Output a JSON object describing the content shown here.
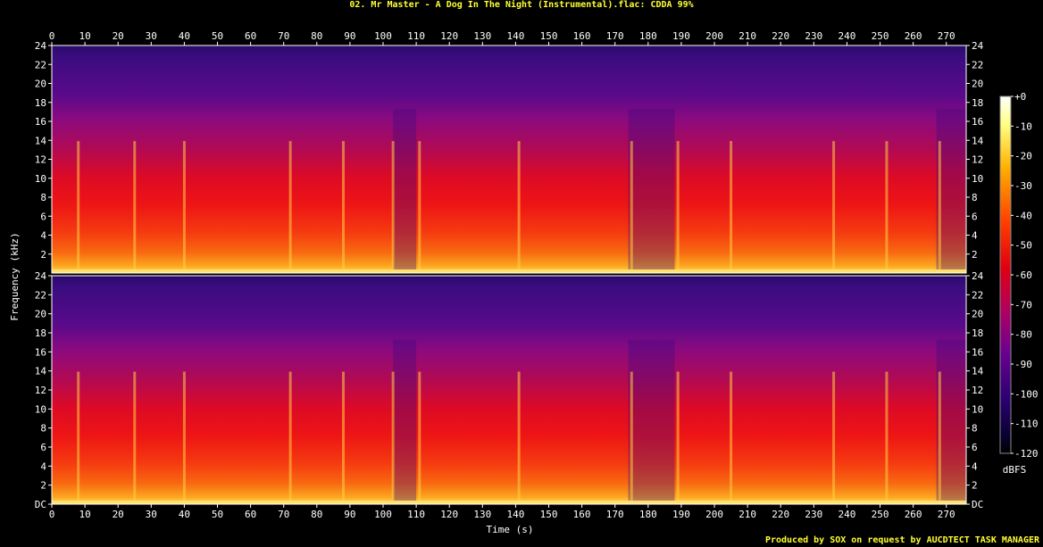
{
  "title": "02. Mr Master - A Dog In The Night (Instrumental).flac: CDDA 99%",
  "footer": "Produced by SOX on request by AUCDTECT TASK MANAGER",
  "chart_data": {
    "type": "heatmap",
    "title": "02. Mr Master - A Dog In The Night (Instrumental).flac: CDDA 99%",
    "xlabel": "Time (s)",
    "ylabel": "Frequency (kHz)",
    "x_ticks": [
      0,
      10,
      20,
      30,
      40,
      50,
      60,
      70,
      80,
      90,
      100,
      110,
      120,
      130,
      140,
      150,
      160,
      170,
      180,
      190,
      200,
      210,
      220,
      230,
      240,
      250,
      260,
      270
    ],
    "y_ticks_top": [
      "24",
      "22",
      "20",
      "18",
      "16",
      "14",
      "12",
      "10",
      "8",
      "6",
      "4",
      "2"
    ],
    "y_ticks_bottom": [
      "24",
      "22",
      "20",
      "18",
      "16",
      "14",
      "12",
      "10",
      "8",
      "6",
      "4",
      "2",
      "DC"
    ],
    "xlim": [
      0,
      276
    ],
    "ylim": [
      0,
      24
    ],
    "channels": 2,
    "colorbar": {
      "label": "dBFS",
      "ticks": [
        "+0",
        "-10",
        "-20",
        "-30",
        "-40",
        "-50",
        "-60",
        "-70",
        "-80",
        "-90",
        "-100",
        "-110",
        "-120"
      ],
      "range": [
        -120,
        0
      ]
    },
    "transients_s": [
      8,
      25,
      40,
      72,
      88,
      103,
      111,
      141,
      175,
      189,
      205,
      236,
      252,
      268
    ],
    "quiet_segments_s": [
      [
        103,
        110
      ],
      [
        174,
        188
      ],
      [
        267,
        276
      ]
    ]
  }
}
